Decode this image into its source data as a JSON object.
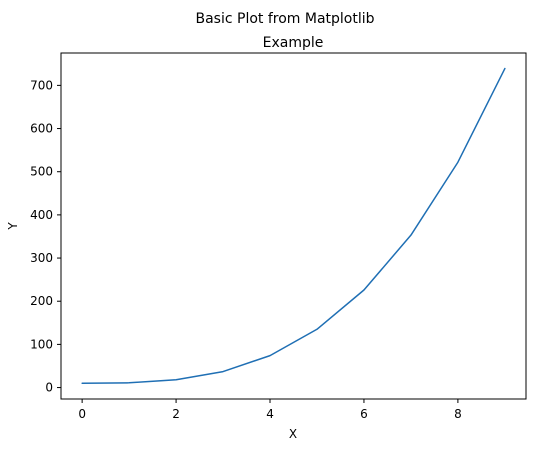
{
  "chart_data": {
    "type": "line",
    "suptitle": "Basic Plot from Matplotlib",
    "title": "Example",
    "xlabel": "X",
    "ylabel": "Y",
    "x": [
      0,
      1,
      2,
      3,
      4,
      5,
      6,
      7,
      8,
      9
    ],
    "series": [
      {
        "values": [
          10,
          11,
          18,
          37,
          74,
          135,
          226,
          353,
          522,
          739
        ],
        "color": "#1f6fb4"
      }
    ],
    "xlim": [
      -0.45,
      9.45
    ],
    "ylim": [
      -26.5,
      775
    ],
    "xticks": [
      0,
      2,
      4,
      6,
      8
    ],
    "yticks": [
      0,
      100,
      200,
      300,
      400,
      500,
      600,
      700
    ],
    "grid": false,
    "legend": false
  }
}
